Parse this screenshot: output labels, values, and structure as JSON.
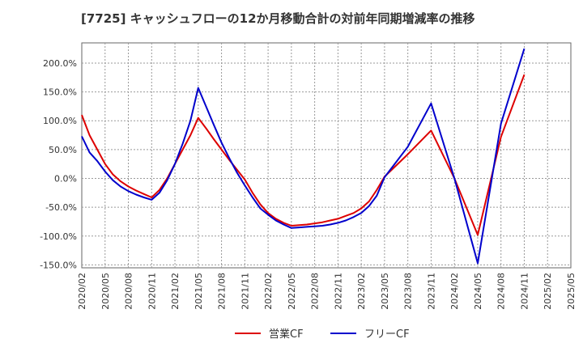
{
  "chart_data": {
    "type": "line",
    "title": "[7725]  キャッシュフローの12か月移動合計の対前年同期増減率の推移",
    "xlabel": "",
    "ylabel": "",
    "ylim": [
      -155,
      235
    ],
    "y_ticks": [
      "200.0%",
      "150.0%",
      "100.0%",
      "50.0%",
      "0.0%",
      "-50.0%",
      "-100.0%",
      "-150.0%"
    ],
    "y_tick_values": [
      200,
      150,
      100,
      50,
      0,
      -50,
      -100,
      -150
    ],
    "x_ticks": [
      "2020/02",
      "2020/05",
      "2020/08",
      "2020/11",
      "2021/02",
      "2021/05",
      "2021/08",
      "2021/11",
      "2022/02",
      "2022/05",
      "2022/08",
      "2022/11",
      "2023/02",
      "2023/05",
      "2023/08",
      "2023/11",
      "2024/02",
      "2024/05",
      "2024/08",
      "2024/11",
      "2025/02",
      "2025/05"
    ],
    "x_range": [
      "2020/02",
      "2025/05"
    ],
    "grid": true,
    "legend_position": "bottom",
    "series": [
      {
        "name": "営業CF",
        "color": "#dd0000",
        "x": [
          "2020/02",
          "2020/03",
          "2020/04",
          "2020/05",
          "2020/06",
          "2020/07",
          "2020/08",
          "2020/09",
          "2020/10",
          "2020/11",
          "2020/12",
          "2021/01",
          "2021/02",
          "2021/03",
          "2021/04",
          "2021/05",
          "2021/06",
          "2021/07",
          "2021/08",
          "2021/09",
          "2021/10",
          "2021/11",
          "2021/12",
          "2022/01",
          "2022/02",
          "2022/03",
          "2022/04",
          "2022/05",
          "2022/06",
          "2022/07",
          "2022/08",
          "2022/09",
          "2022/10",
          "2022/11",
          "2022/12",
          "2023/01",
          "2023/02",
          "2023/03",
          "2023/04",
          "2023/05",
          "2023/08",
          "2023/11",
          "2024/02",
          "2024/05",
          "2024/08",
          "2024/11"
        ],
        "values": [
          110,
          75,
          50,
          25,
          7,
          -5,
          -14,
          -21,
          -27,
          -33,
          -20,
          0,
          25,
          50,
          75,
          105,
          87,
          68,
          50,
          32,
          15,
          -2,
          -25,
          -45,
          -60,
          -70,
          -77,
          -82,
          -81,
          -80,
          -78,
          -76,
          -73,
          -70,
          -65,
          -60,
          -52,
          -40,
          -20,
          3,
          42,
          83,
          0,
          -98,
          72,
          180
        ]
      },
      {
        "name": "フリーCF",
        "color": "#0000cc",
        "x": [
          "2020/02",
          "2020/03",
          "2020/04",
          "2020/05",
          "2020/06",
          "2020/07",
          "2020/08",
          "2020/09",
          "2020/10",
          "2020/11",
          "2020/12",
          "2021/01",
          "2021/02",
          "2021/03",
          "2021/04",
          "2021/05",
          "2021/06",
          "2021/07",
          "2021/08",
          "2021/09",
          "2021/10",
          "2021/11",
          "2021/12",
          "2022/01",
          "2022/02",
          "2022/03",
          "2022/04",
          "2022/05",
          "2022/06",
          "2022/07",
          "2022/08",
          "2022/09",
          "2022/10",
          "2022/11",
          "2022/12",
          "2023/01",
          "2023/02",
          "2023/03",
          "2023/04",
          "2023/05",
          "2023/08",
          "2023/11",
          "2024/02",
          "2024/05",
          "2024/08",
          "2024/11"
        ],
        "values": [
          73,
          45,
          30,
          12,
          -3,
          -14,
          -22,
          -28,
          -33,
          -37,
          -25,
          -3,
          25,
          60,
          100,
          157,
          125,
          93,
          62,
          35,
          10,
          -12,
          -33,
          -52,
          -63,
          -73,
          -80,
          -86,
          -85,
          -84,
          -83,
          -82,
          -80,
          -77,
          -73,
          -67,
          -60,
          -48,
          -30,
          2,
          55,
          130,
          0,
          -147,
          95,
          225
        ]
      }
    ]
  }
}
